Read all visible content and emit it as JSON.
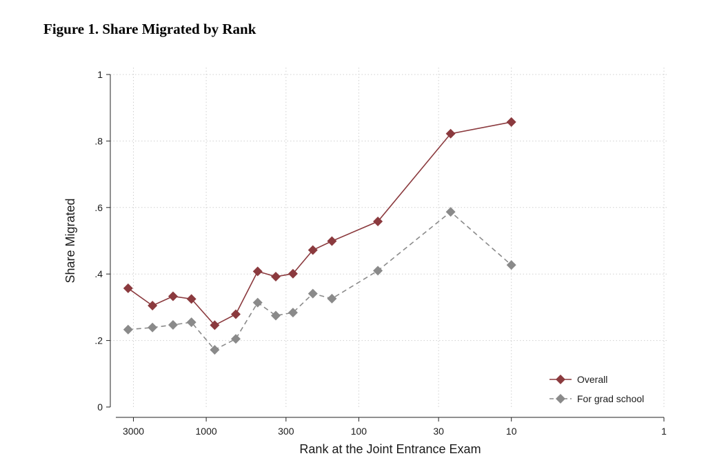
{
  "figure": {
    "title": "Figure 1. Share Migrated by Rank"
  },
  "chart_data": {
    "type": "line",
    "title": "Figure 1. Share Migrated by Rank",
    "xlabel": "Rank at the Joint Entrance Exam",
    "ylabel": "Share Migrated",
    "x_scale": "log",
    "x_reversed": true,
    "xlim": [
      3600,
      1
    ],
    "ylim": [
      0,
      1
    ],
    "x_ticks": [
      {
        "value": 3000,
        "label": "3000"
      },
      {
        "value": 1000,
        "label": "1000"
      },
      {
        "value": 300,
        "label": "300"
      },
      {
        "value": 100,
        "label": "100"
      },
      {
        "value": 30,
        "label": "30"
      },
      {
        "value": 10,
        "label": "10"
      },
      {
        "value": 1,
        "label": "1"
      }
    ],
    "y_ticks": [
      {
        "value": 0,
        "label": "0"
      },
      {
        "value": 0.2,
        "label": ".2"
      },
      {
        "value": 0.4,
        "label": ".4"
      },
      {
        "value": 0.6,
        "label": ".6"
      },
      {
        "value": 0.8,
        "label": ".8"
      },
      {
        "value": 1,
        "label": "1"
      }
    ],
    "grid": true,
    "legend_position": "bottom-right",
    "x": [
      3250,
      2250,
      1650,
      1250,
      880,
      640,
      460,
      350,
      270,
      200,
      150,
      75,
      25,
      10
    ],
    "series": [
      {
        "name": "Overall",
        "color": "#8b3a3e",
        "line_style": "solid",
        "marker": "diamond",
        "values": [
          0.357,
          0.305,
          0.333,
          0.325,
          0.246,
          0.279,
          0.408,
          0.392,
          0.401,
          0.472,
          0.499,
          0.558,
          0.822,
          0.857
        ]
      },
      {
        "name": "For grad school",
        "color": "#8a8a8a",
        "line_style": "dashed",
        "marker": "diamond",
        "values": [
          0.233,
          0.239,
          0.247,
          0.255,
          0.172,
          0.205,
          0.314,
          0.275,
          0.284,
          0.341,
          0.326,
          0.41,
          0.587,
          0.427
        ]
      }
    ]
  }
}
